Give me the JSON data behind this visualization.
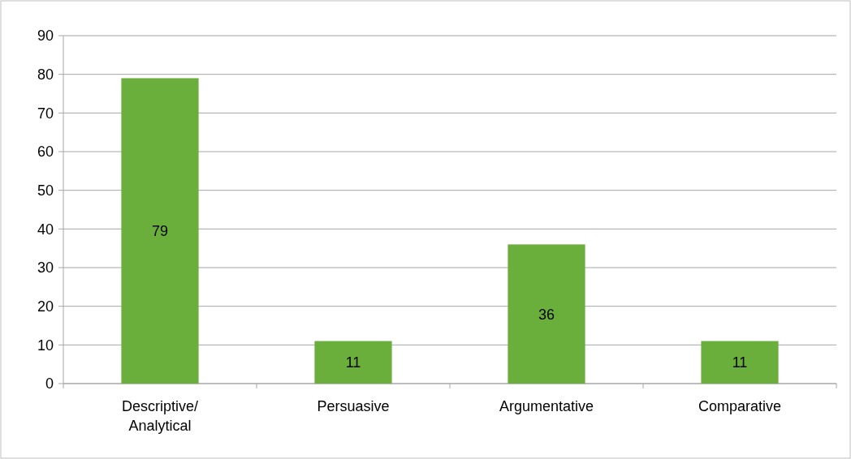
{
  "chart_data": {
    "type": "bar",
    "categories": [
      "Descriptive/\nAnalytical",
      "Persuasive",
      "Argumentative",
      "Comparative"
    ],
    "values": [
      79,
      11,
      36,
      11
    ],
    "color": "#6aaf3c",
    "ylim": [
      0,
      90
    ],
    "yticks": [
      0,
      10,
      20,
      30,
      40,
      50,
      60,
      70,
      80,
      90
    ],
    "grid": "y",
    "data_labels": true
  }
}
